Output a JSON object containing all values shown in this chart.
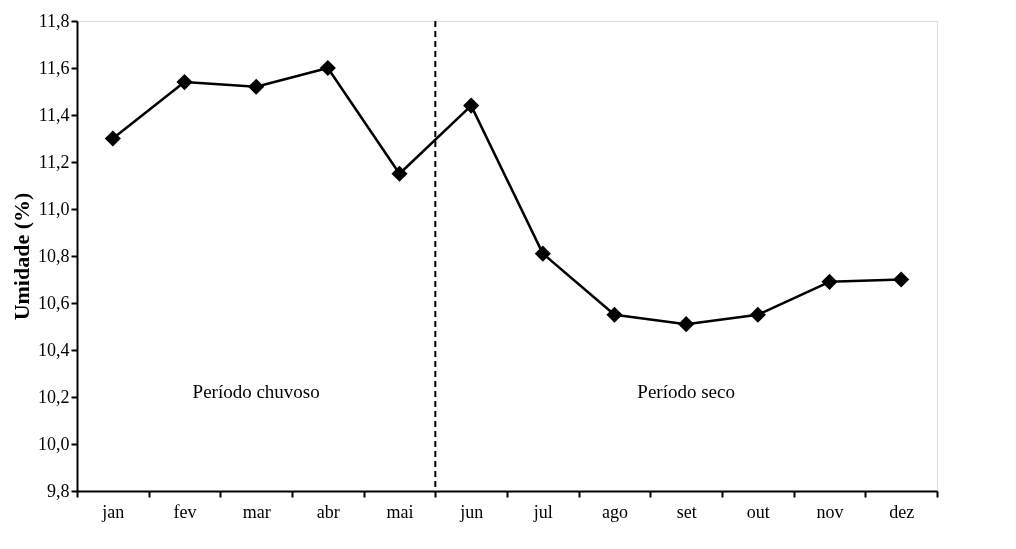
{
  "chart_data": {
    "type": "line",
    "ylabel": "Umidade (%)",
    "categories": [
      "jan",
      "fev",
      "mar",
      "abr",
      "mai",
      "jun",
      "jul",
      "ago",
      "set",
      "out",
      "nov",
      "dez"
    ],
    "series": [
      {
        "color": "#000000",
        "values": [
          11.3,
          11.54,
          11.52,
          11.6,
          11.15,
          11.44,
          10.81,
          10.55,
          10.51,
          10.55,
          10.69,
          10.7
        ]
      }
    ],
    "ylim": [
      9.8,
      11.8
    ],
    "yticks": [
      {
        "value": 9.8,
        "label": "9,8"
      },
      {
        "value": 10.0,
        "label": "10,0"
      },
      {
        "value": 10.2,
        "label": "10,2"
      },
      {
        "value": 10.4,
        "label": "10,4"
      },
      {
        "value": 10.6,
        "label": "10,6"
      },
      {
        "value": 10.8,
        "label": "10,8"
      },
      {
        "value": 11.0,
        "label": "11,0"
      },
      {
        "value": 11.2,
        "label": "11,2"
      },
      {
        "value": 11.4,
        "label": "11,4"
      },
      {
        "value": 11.6,
        "label": "11,6"
      },
      {
        "value": 11.8,
        "label": "11,8"
      }
    ],
    "annotations": [
      "Período chuvoso",
      "Período seco"
    ],
    "marker": "diamond",
    "line_style": "solid",
    "grid": false
  }
}
